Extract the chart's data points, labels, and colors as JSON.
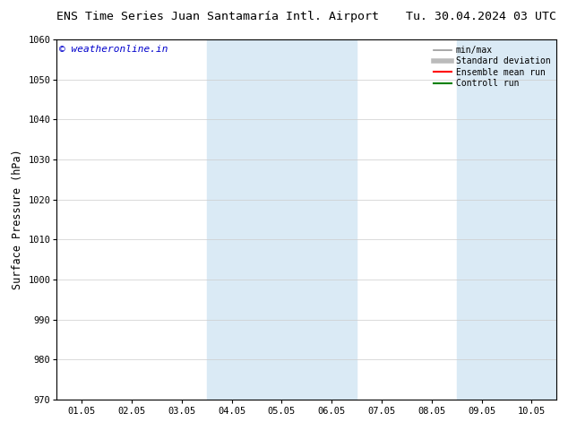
{
  "title_left": "ENS Time Series Juan Santamaría Intl. Airport",
  "title_right": "Tu. 30.04.2024 03 UTC",
  "ylabel": "Surface Pressure (hPa)",
  "ylim": [
    970,
    1060
  ],
  "yticks": [
    970,
    980,
    990,
    1000,
    1010,
    1020,
    1030,
    1040,
    1050,
    1060
  ],
  "xlabel_ticks": [
    "01.05",
    "02.05",
    "03.05",
    "04.05",
    "05.05",
    "06.05",
    "07.05",
    "08.05",
    "09.05",
    "10.05"
  ],
  "x_values": [
    1,
    2,
    3,
    4,
    5,
    6,
    7,
    8,
    9,
    10
  ],
  "xlim": [
    0.5,
    10.5
  ],
  "shaded_bands": [
    {
      "x_start": 3.5,
      "x_end": 6.5,
      "color": "#daeaf5"
    },
    {
      "x_start": 8.5,
      "x_end": 10.5,
      "color": "#daeaf5"
    }
  ],
  "watermark_text": "© weatheronline.in",
  "watermark_color": "#0000cc",
  "watermark_fontsize": 8,
  "legend_items": [
    {
      "label": "min/max",
      "color": "#999999",
      "lw": 1.2,
      "style": "solid"
    },
    {
      "label": "Standard deviation",
      "color": "#bbbbbb",
      "lw": 4,
      "style": "solid"
    },
    {
      "label": "Ensemble mean run",
      "color": "#ff0000",
      "lw": 1.5,
      "style": "solid"
    },
    {
      "label": "Controll run",
      "color": "#008000",
      "lw": 1.5,
      "style": "solid"
    }
  ],
  "bg_color": "#ffffff",
  "plot_bg_color": "#ffffff",
  "grid_color": "#cccccc",
  "title_fontsize": 9.5,
  "tick_fontsize": 7.5,
  "ylabel_fontsize": 8.5
}
